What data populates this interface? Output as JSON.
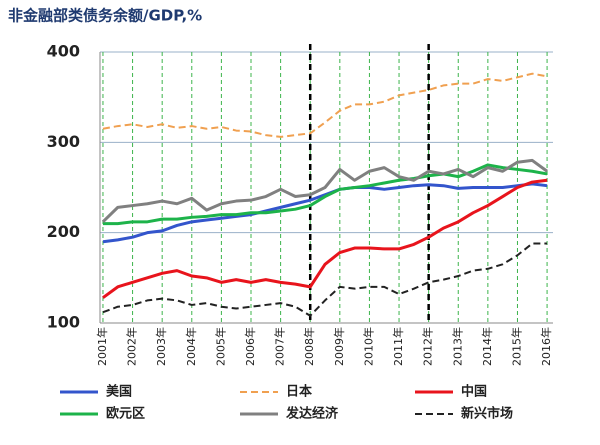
{
  "chart_data": {
    "type": "line",
    "title": "非金融部类债务余额/GDP,%",
    "x": [
      2001,
      2001.5,
      2002,
      2002.5,
      2003,
      2003.5,
      2004,
      2004.5,
      2005,
      2005.5,
      2006,
      2006.5,
      2007,
      2007.5,
      2008,
      2008.5,
      2009,
      2009.5,
      2010,
      2010.5,
      2011,
      2011.5,
      2012,
      2012.5,
      2013,
      2013.5,
      2014,
      2014.5,
      2015,
      2015.5,
      2016
    ],
    "series": [
      {
        "name": "美国",
        "color": "#3355cc",
        "line_style": "solid",
        "values": [
          190,
          192,
          195,
          200,
          202,
          208,
          212,
          214,
          216,
          218,
          220,
          224,
          228,
          232,
          236,
          242,
          248,
          250,
          250,
          248,
          250,
          252,
          253,
          252,
          249,
          250,
          250,
          250,
          252,
          254,
          252
        ]
      },
      {
        "name": "日本",
        "color": "#f0a050",
        "line_style": "dashed",
        "values": [
          315,
          318,
          320,
          317,
          320,
          316,
          318,
          315,
          317,
          313,
          312,
          308,
          306,
          308,
          310,
          322,
          335,
          342,
          342,
          345,
          352,
          355,
          358,
          363,
          365,
          365,
          370,
          368,
          372,
          376,
          373
        ]
      },
      {
        "name": "中国",
        "color": "#e8141c",
        "line_style": "solid",
        "values": [
          128,
          140,
          145,
          150,
          155,
          158,
          152,
          150,
          145,
          148,
          145,
          148,
          145,
          143,
          140,
          165,
          178,
          183,
          183,
          182,
          182,
          187,
          195,
          205,
          212,
          222,
          230,
          240,
          250,
          256,
          258
        ]
      },
      {
        "name": "欧元区",
        "color": "#1db34a",
        "line_style": "solid",
        "values": [
          210,
          210,
          212,
          212,
          215,
          215,
          217,
          218,
          220,
          220,
          222,
          222,
          224,
          226,
          230,
          240,
          248,
          250,
          252,
          255,
          258,
          260,
          263,
          265,
          262,
          268,
          275,
          272,
          270,
          268,
          265
        ]
      },
      {
        "name": "发达经济",
        "color": "#808080",
        "line_style": "solid",
        "values": [
          212,
          228,
          230,
          232,
          235,
          232,
          238,
          225,
          232,
          235,
          236,
          240,
          248,
          240,
          242,
          250,
          270,
          258,
          268,
          272,
          262,
          258,
          268,
          265,
          270,
          262,
          272,
          268,
          278,
          280,
          268
        ]
      },
      {
        "name": "新兴市场",
        "color": "#222222",
        "line_style": "dashed",
        "values": [
          112,
          118,
          120,
          125,
          127,
          125,
          120,
          122,
          118,
          116,
          118,
          120,
          122,
          118,
          108,
          125,
          140,
          138,
          140,
          140,
          132,
          138,
          145,
          148,
          152,
          158,
          160,
          165,
          175,
          188,
          188
        ]
      }
    ],
    "xlim": [
      2000.9,
      2016.2
    ],
    "xticks": [
      {
        "value": 2001,
        "label": "2001年"
      },
      {
        "value": 2002,
        "label": "2002年"
      },
      {
        "value": 2003,
        "label": "2003年"
      },
      {
        "value": 2004,
        "label": "2004年"
      },
      {
        "value": 2005,
        "label": "2005年"
      },
      {
        "value": 2006,
        "label": "2006年"
      },
      {
        "value": 2007,
        "label": "2007年"
      },
      {
        "value": 2008,
        "label": "2008年"
      },
      {
        "value": 2009,
        "label": "2009年"
      },
      {
        "value": 2010,
        "label": "2010年"
      },
      {
        "value": 2011,
        "label": "2011年"
      },
      {
        "value": 2012,
        "label": "2012年"
      },
      {
        "value": 2013,
        "label": "2013年"
      },
      {
        "value": 2014,
        "label": "2014年"
      },
      {
        "value": 2015,
        "label": "2015年"
      },
      {
        "value": 2016,
        "label": "2016年"
      }
    ],
    "ylim": [
      100,
      400
    ],
    "yticks": [
      100,
      200,
      300,
      400
    ],
    "vlines": [
      2008,
      2012
    ],
    "grid": true,
    "legend": "bottom"
  }
}
